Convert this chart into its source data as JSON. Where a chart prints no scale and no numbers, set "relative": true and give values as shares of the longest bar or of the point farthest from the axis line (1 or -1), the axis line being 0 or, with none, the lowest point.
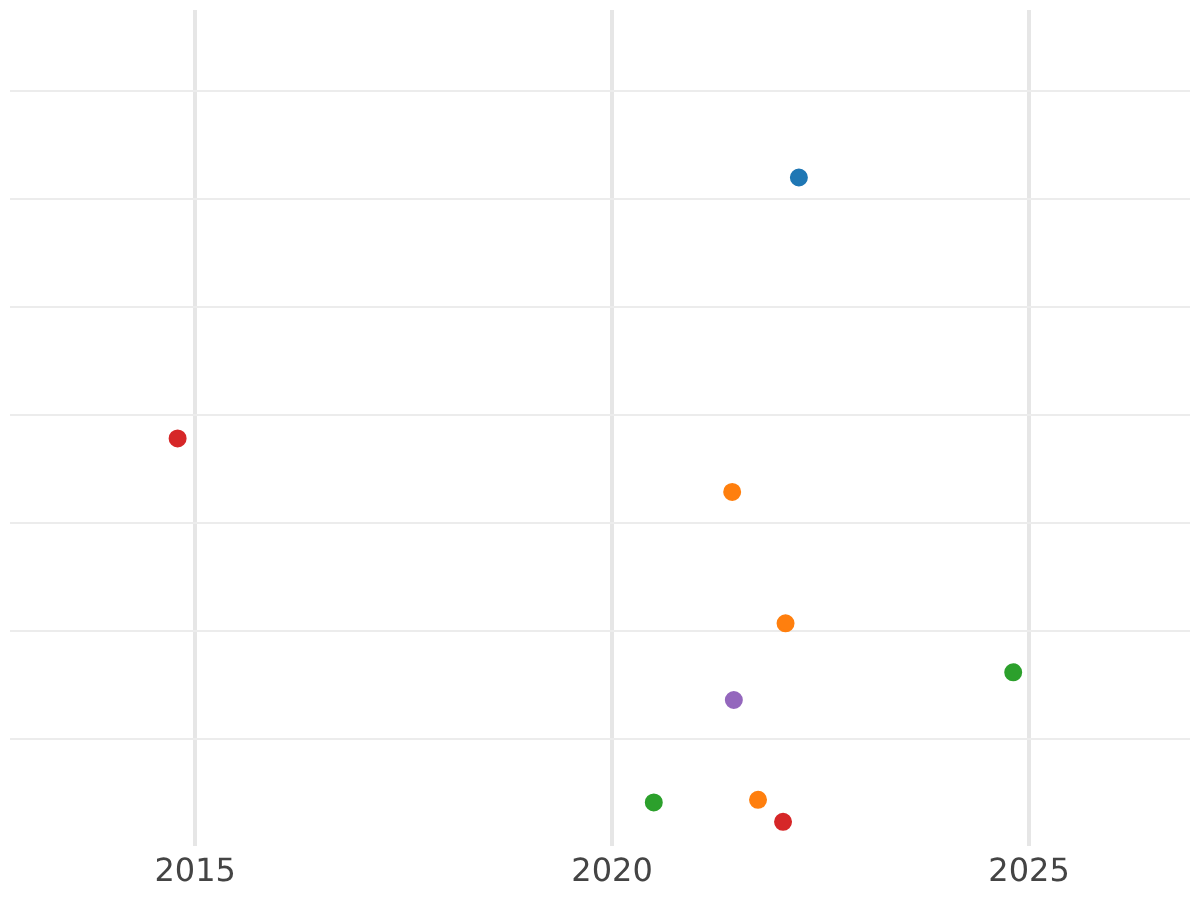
{
  "chart_data": {
    "type": "scatter",
    "relative": true,
    "x": [
      2022.24,
      2014.79,
      2021.44,
      2022.08,
      2024.81,
      2021.46,
      2020.5,
      2021.75,
      2022.05
    ],
    "values": [
      1,
      0.595,
      0.512,
      0.308,
      0.232,
      0.189,
      0.03,
      0.034,
      0
    ],
    "colors": [
      "#1f77b4",
      "#d62728",
      "#ff7f0e",
      "#ff7f0e",
      "#2ca02c",
      "#9467bd",
      "#2ca02c",
      "#ff7f0e",
      "#d62728"
    ],
    "xlim": [
      2012.78,
      2026.93
    ],
    "xticks": [
      2015,
      2020,
      2025
    ],
    "grid": true,
    "marker": "circle",
    "legend": false
  }
}
